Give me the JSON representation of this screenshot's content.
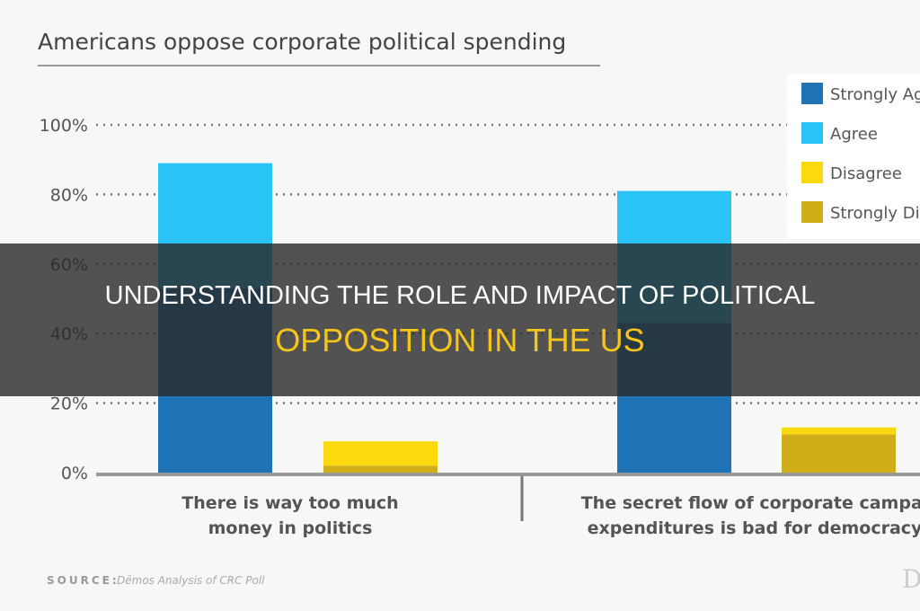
{
  "banner": {
    "line1": "UNDERSTANDING THE ROLE AND IMPACT OF POLITICAL",
    "line2": "OPPOSITION IN THE US"
  },
  "chart_data": {
    "type": "bar",
    "stacked": true,
    "title": "Americans oppose corporate political spending",
    "categories": [
      "There is way too much money in politics",
      "The secret flow of corporate campai expenditures is bad for democracy"
    ],
    "category_lines": [
      [
        "There is way too much",
        "money in politics"
      ],
      [
        "The secret flow of corporate campai",
        "expenditures is bad for democracy"
      ]
    ],
    "groups": [
      {
        "name": "agree",
        "series": [
          {
            "name": "Strongly Ag",
            "color": "#1f73b7",
            "values": [
              53,
              43
            ]
          },
          {
            "name": "Agree",
            "color": "#29c3f5",
            "values": [
              36,
              38
            ]
          }
        ]
      },
      {
        "name": "disagree",
        "series": [
          {
            "name": "Strongly Di",
            "color": "#cfae1a",
            "values": [
              2,
              11
            ]
          },
          {
            "name": "Disagree",
            "color": "#fcd90f",
            "values": [
              7,
              2
            ]
          }
        ]
      }
    ],
    "legend": [
      "Strongly Ag",
      "Agree",
      "Disagree",
      "Strongly Di"
    ],
    "legend_colors": [
      "#1f73b7",
      "#29c3f5",
      "#fcd90f",
      "#cfae1a"
    ],
    "legend_position": "top-right",
    "yticks": [
      "0%",
      "20%",
      "40%",
      "60%",
      "80%",
      "100%"
    ],
    "ylim": [
      0,
      100
    ],
    "grid": true,
    "source_label": "SOURCE:",
    "source_text": "Dēmos Analysis of CRC Poll",
    "logo": "D"
  }
}
